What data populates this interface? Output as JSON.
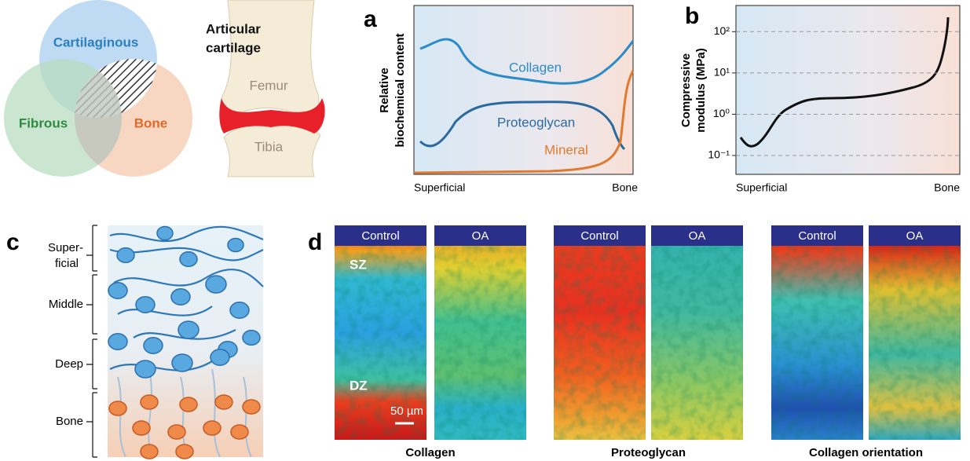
{
  "venn": {
    "cartilaginous": "Cartilaginous",
    "fibrous": "Fibrous",
    "bone": "Bone"
  },
  "joint": {
    "title": [
      "Articular",
      "cartilage"
    ],
    "femur": "Femur",
    "tibia": "Tibia"
  },
  "panel_a": {
    "letter": "a",
    "y_label": [
      "Relative",
      "biochemical content"
    ],
    "x_start": "Superficial",
    "x_end": "Bone",
    "curves": [
      "Collagen",
      "Proteoglycan",
      "Mineral"
    ]
  },
  "panel_b": {
    "letter": "b",
    "y_label": [
      "Compressive",
      "modulus (MPa)"
    ],
    "x_start": "Superficial",
    "x_end": "Bone",
    "yscale": "log",
    "ylim": [
      0.035,
      430
    ],
    "grid": true,
    "yticks": [
      {
        "value": 0.1,
        "label": "10⁻¹"
      },
      {
        "value": 1,
        "label": "10⁰"
      },
      {
        "value": 10,
        "label": "10¹"
      },
      {
        "value": 100,
        "label": "10²"
      }
    ]
  },
  "panel_c": {
    "letter": "c",
    "zones": [
      [
        "Super-",
        "ficial"
      ],
      [
        "Middle"
      ],
      [
        "Deep"
      ],
      [
        "Bone"
      ]
    ]
  },
  "panel_d": {
    "letter": "d",
    "zone_labels": [
      "SZ",
      "DZ"
    ],
    "scale_bar": "50 µm",
    "groups": [
      {
        "title": "Collagen",
        "panels": [
          "Control",
          "OA"
        ]
      },
      {
        "title": "Proteoglycan",
        "panels": [
          "Control",
          "OA"
        ]
      },
      {
        "title": "Collagen orientation",
        "panels": [
          "Control",
          "OA"
        ]
      }
    ]
  }
}
